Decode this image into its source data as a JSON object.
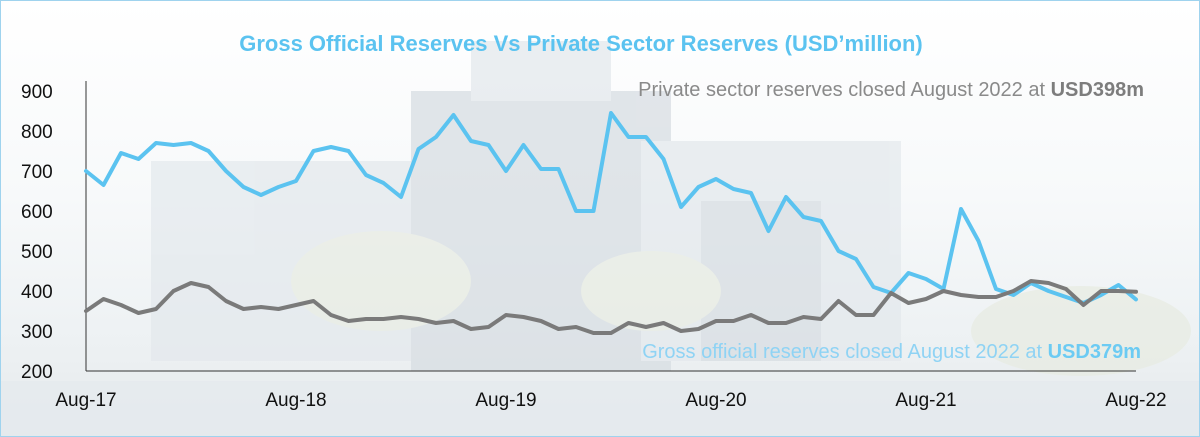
{
  "chart_data": {
    "type": "line",
    "title": "Gross Official  Reserves Vs Private Sector Reserves (USD’million)",
    "xlabel": "",
    "ylabel": "",
    "ylim": [
      200,
      900
    ],
    "yticks": [
      900,
      800,
      700,
      600,
      500,
      400,
      300,
      200
    ],
    "xticks": [
      "Aug-17",
      "Aug-18",
      "Aug-19",
      "Aug-20",
      "Aug-21",
      "Aug-22"
    ],
    "grid": false,
    "legend": "none",
    "series": [
      {
        "color": "#5bc3f0",
        "points": [
          {
            "x": "2017-08",
            "y": 700
          },
          {
            "x": "2017-09",
            "y": 665
          },
          {
            "x": "2017-10",
            "y": 745
          },
          {
            "x": "2017-11",
            "y": 730
          },
          {
            "x": "2017-12",
            "y": 770
          },
          {
            "x": "2018-01",
            "y": 765
          },
          {
            "x": "2018-02",
            "y": 770
          },
          {
            "x": "2018-03",
            "y": 750
          },
          {
            "x": "2018-04",
            "y": 700
          },
          {
            "x": "2018-05",
            "y": 660
          },
          {
            "x": "2018-06",
            "y": 640
          },
          {
            "x": "2018-07",
            "y": 660
          },
          {
            "x": "2018-08",
            "y": 675
          },
          {
            "x": "2018-09",
            "y": 750
          },
          {
            "x": "2018-10",
            "y": 760
          },
          {
            "x": "2018-11",
            "y": 750
          },
          {
            "x": "2018-12",
            "y": 690
          },
          {
            "x": "2019-01",
            "y": 670
          },
          {
            "x": "2019-02",
            "y": 635
          },
          {
            "x": "2019-03",
            "y": 755
          },
          {
            "x": "2019-04",
            "y": 785
          },
          {
            "x": "2019-05",
            "y": 840
          },
          {
            "x": "2019-06",
            "y": 775
          },
          {
            "x": "2019-07",
            "y": 765
          },
          {
            "x": "2019-08",
            "y": 700
          },
          {
            "x": "2019-09",
            "y": 765
          },
          {
            "x": "2019-10",
            "y": 705
          },
          {
            "x": "2019-11",
            "y": 705
          },
          {
            "x": "2019-12",
            "y": 600
          },
          {
            "x": "2020-01",
            "y": 600
          },
          {
            "x": "2020-02",
            "y": 845
          },
          {
            "x": "2020-03",
            "y": 785
          },
          {
            "x": "2020-04",
            "y": 785
          },
          {
            "x": "2020-05",
            "y": 730
          },
          {
            "x": "2020-06",
            "y": 610
          },
          {
            "x": "2020-07",
            "y": 660
          },
          {
            "x": "2020-08",
            "y": 680
          },
          {
            "x": "2020-09",
            "y": 655
          },
          {
            "x": "2020-10",
            "y": 645
          },
          {
            "x": "2020-11",
            "y": 550
          },
          {
            "x": "2020-12",
            "y": 635
          },
          {
            "x": "2021-01",
            "y": 585
          },
          {
            "x": "2021-02",
            "y": 575
          },
          {
            "x": "2021-03",
            "y": 500
          },
          {
            "x": "2021-04",
            "y": 480
          },
          {
            "x": "2021-05",
            "y": 410
          },
          {
            "x": "2021-06",
            "y": 395
          },
          {
            "x": "2021-07",
            "y": 445
          },
          {
            "x": "2021-08",
            "y": 430
          },
          {
            "x": "2021-09",
            "y": 405
          },
          {
            "x": "2021-10",
            "y": 605
          },
          {
            "x": "2021-11",
            "y": 525
          },
          {
            "x": "2021-12",
            "y": 405
          },
          {
            "x": "2022-01",
            "y": 390
          },
          {
            "x": "2022-02",
            "y": 420
          },
          {
            "x": "2022-03",
            "y": 400
          },
          {
            "x": "2022-04",
            "y": 385
          },
          {
            "x": "2022-05",
            "y": 370
          },
          {
            "x": "2022-06",
            "y": 390
          },
          {
            "x": "2022-07",
            "y": 415
          },
          {
            "x": "2022-08",
            "y": 379
          }
        ]
      },
      {
        "color": "#7a7a7a",
        "points": [
          {
            "x": "2017-08",
            "y": 350
          },
          {
            "x": "2017-09",
            "y": 380
          },
          {
            "x": "2017-10",
            "y": 365
          },
          {
            "x": "2017-11",
            "y": 345
          },
          {
            "x": "2017-12",
            "y": 355
          },
          {
            "x": "2018-01",
            "y": 400
          },
          {
            "x": "2018-02",
            "y": 420
          },
          {
            "x": "2018-03",
            "y": 410
          },
          {
            "x": "2018-04",
            "y": 375
          },
          {
            "x": "2018-05",
            "y": 355
          },
          {
            "x": "2018-06",
            "y": 360
          },
          {
            "x": "2018-07",
            "y": 355
          },
          {
            "x": "2018-08",
            "y": 365
          },
          {
            "x": "2018-09",
            "y": 375
          },
          {
            "x": "2018-10",
            "y": 340
          },
          {
            "x": "2018-11",
            "y": 325
          },
          {
            "x": "2018-12",
            "y": 330
          },
          {
            "x": "2019-01",
            "y": 330
          },
          {
            "x": "2019-02",
            "y": 335
          },
          {
            "x": "2019-03",
            "y": 330
          },
          {
            "x": "2019-04",
            "y": 320
          },
          {
            "x": "2019-05",
            "y": 325
          },
          {
            "x": "2019-06",
            "y": 305
          },
          {
            "x": "2019-07",
            "y": 310
          },
          {
            "x": "2019-08",
            "y": 340
          },
          {
            "x": "2019-09",
            "y": 335
          },
          {
            "x": "2019-10",
            "y": 325
          },
          {
            "x": "2019-11",
            "y": 305
          },
          {
            "x": "2019-12",
            "y": 310
          },
          {
            "x": "2020-01",
            "y": 295
          },
          {
            "x": "2020-02",
            "y": 295
          },
          {
            "x": "2020-03",
            "y": 320
          },
          {
            "x": "2020-04",
            "y": 310
          },
          {
            "x": "2020-05",
            "y": 320
          },
          {
            "x": "2020-06",
            "y": 300
          },
          {
            "x": "2020-07",
            "y": 305
          },
          {
            "x": "2020-08",
            "y": 325
          },
          {
            "x": "2020-09",
            "y": 325
          },
          {
            "x": "2020-10",
            "y": 340
          },
          {
            "x": "2020-11",
            "y": 320
          },
          {
            "x": "2020-12",
            "y": 320
          },
          {
            "x": "2021-01",
            "y": 335
          },
          {
            "x": "2021-02",
            "y": 330
          },
          {
            "x": "2021-03",
            "y": 375
          },
          {
            "x": "2021-04",
            "y": 340
          },
          {
            "x": "2021-05",
            "y": 340
          },
          {
            "x": "2021-06",
            "y": 395
          },
          {
            "x": "2021-07",
            "y": 370
          },
          {
            "x": "2021-08",
            "y": 380
          },
          {
            "x": "2021-09",
            "y": 400
          },
          {
            "x": "2021-10",
            "y": 390
          },
          {
            "x": "2021-11",
            "y": 385
          },
          {
            "x": "2021-12",
            "y": 385
          },
          {
            "x": "2022-01",
            "y": 400
          },
          {
            "x": "2022-02",
            "y": 425
          },
          {
            "x": "2022-03",
            "y": 420
          },
          {
            "x": "2022-04",
            "y": 405
          },
          {
            "x": "2022-05",
            "y": 365
          },
          {
            "x": "2022-06",
            "y": 400
          },
          {
            "x": "2022-07",
            "y": 400
          },
          {
            "x": "2022-08",
            "y": 398
          }
        ]
      }
    ],
    "annotations": {
      "private_prefix": "Private sector reserves closed August 2022 at ",
      "private_value": "USD398m",
      "gross_prefix": "Gross official reserves closed August 2022 at ",
      "gross_value": "USD379m"
    }
  }
}
